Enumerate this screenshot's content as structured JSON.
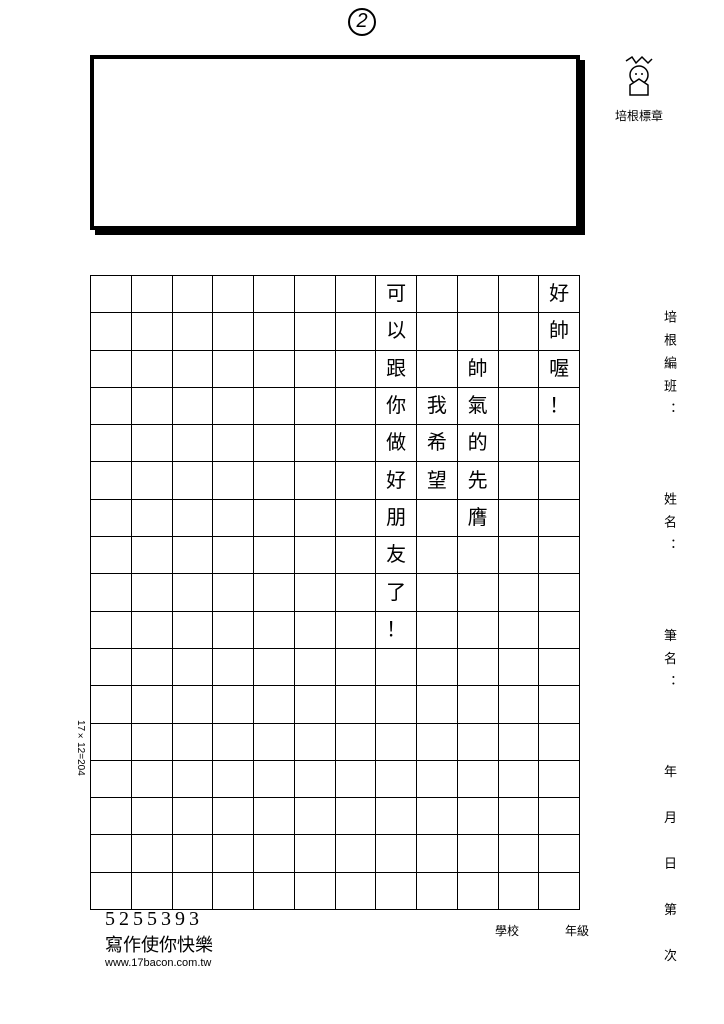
{
  "page_number": "2",
  "stamp_label": "培根標章",
  "side_labels": {
    "class": "培根編班：",
    "name": "姓名：",
    "penname": "筆名：",
    "date": "年　月　日　第　次"
  },
  "grid": {
    "cols": 12,
    "rows": 17,
    "dimension_text": "17×12=204",
    "columns_rtl": [
      [
        "好",
        "帥",
        "喔",
        "！",
        "",
        "",
        "",
        ""
      ],
      [
        "",
        "",
        "",
        "",
        "",
        "",
        "",
        ""
      ],
      [
        "",
        "",
        "帥",
        "氣",
        "的",
        "先",
        "膺",
        ""
      ],
      [
        "",
        "",
        "",
        "我",
        "希",
        "望",
        "",
        ""
      ],
      [
        "可",
        "以",
        "跟",
        "你",
        "做",
        "好",
        "朋",
        "友",
        "了",
        "！"
      ],
      [],
      [],
      [],
      [],
      [],
      [],
      []
    ]
  },
  "footer": {
    "id": "5255393",
    "slogan": "寫作使你快樂",
    "url": "www.17bacon.com.tw",
    "school_label": "學校",
    "grade_label": "年級"
  }
}
